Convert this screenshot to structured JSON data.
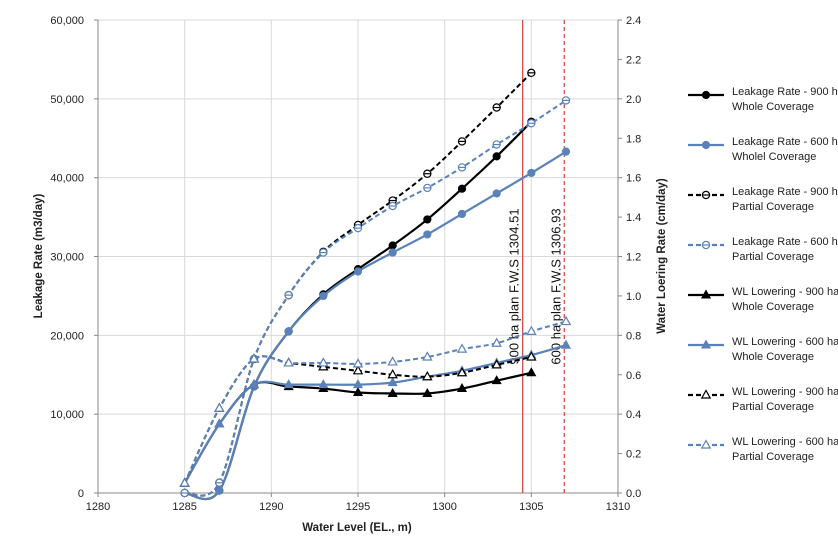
{
  "chart_data": {
    "type": "line",
    "x_axis": {
      "label": "Water Level (EL., m)",
      "min": 1280,
      "max": 1310,
      "ticks": [
        1280,
        1285,
        1290,
        1295,
        1300,
        1305,
        1310
      ]
    },
    "y_left": {
      "label": "Leakage Rate (m3/day)",
      "min": 0,
      "max": 60000,
      "ticks": [
        0,
        10000,
        20000,
        30000,
        40000,
        50000,
        60000
      ],
      "tick_labels": [
        "0",
        "10,000",
        "20,000",
        "30,000",
        "40,000",
        "50,000",
        "60,000"
      ]
    },
    "y_right": {
      "label": "Water Loering Rate (cm/day)",
      "min": 0,
      "max": 2.4,
      "ticks": [
        0,
        0.2,
        0.4,
        0.6,
        0.8,
        1.0,
        1.2,
        1.4,
        1.6,
        1.8,
        2.0,
        2.2,
        2.4
      ],
      "tick_labels": [
        "0.0",
        "0.2",
        "0.4",
        "0.6",
        "0.8",
        "1.0",
        "1.2",
        "1.4",
        "1.6",
        "1.8",
        "2.0",
        "2.2",
        "2.4"
      ]
    },
    "grid": true,
    "legend_position": "right",
    "reference_lines": [
      {
        "x": 1304.5,
        "label": "900 ha plan  F.W.S 1304.51",
        "style": "solid",
        "color": "#d94040"
      },
      {
        "x": 1306.9,
        "label": "600 ha plan  F.W.S 1306.93",
        "style": "dashed",
        "color": "#d94040"
      }
    ],
    "series": [
      {
        "name": "Leakage Rate - 900 ha, Whole Coverage",
        "axis": "left",
        "color": "#000000",
        "dash": false,
        "marker": "circle-filled",
        "x": [
          1285,
          1287,
          1289,
          1291,
          1293,
          1295,
          1297,
          1299,
          1301,
          1303,
          1305
        ],
        "y": [
          0,
          300,
          13500,
          20500,
          25200,
          28400,
          31400,
          34700,
          38600,
          42700,
          47100
        ]
      },
      {
        "name": "Leakage Rate - 600 ha, Wholel Coverage",
        "axis": "left",
        "color": "#5a82b8",
        "dash": false,
        "marker": "circle-filled",
        "x": [
          1285,
          1287,
          1289,
          1291,
          1293,
          1295,
          1297,
          1299,
          1301,
          1303,
          1305,
          1307
        ],
        "y": [
          0,
          300,
          13500,
          20500,
          25000,
          28100,
          30500,
          32800,
          35400,
          38000,
          40600,
          43300
        ]
      },
      {
        "name": "Leakage Rate - 900 ha, Partial Coverage",
        "axis": "left",
        "color": "#000000",
        "dash": true,
        "marker": "circle-half",
        "x": [
          1285,
          1287,
          1289,
          1291,
          1293,
          1295,
          1297,
          1299,
          1301,
          1303,
          1305
        ],
        "y": [
          0,
          1300,
          17000,
          25100,
          30600,
          34000,
          37100,
          40500,
          44600,
          48900,
          53300
        ]
      },
      {
        "name": "Leakage Rate - 600 ha, Partial Coverage",
        "axis": "left",
        "color": "#5a82b8",
        "dash": true,
        "marker": "circle-half",
        "x": [
          1285,
          1287,
          1289,
          1291,
          1293,
          1295,
          1297,
          1299,
          1301,
          1303,
          1305,
          1307
        ],
        "y": [
          0,
          1300,
          17000,
          25100,
          30500,
          33600,
          36400,
          38700,
          41300,
          44200,
          46900,
          49800
        ]
      },
      {
        "name": "WL Lowering - 900 ha, Whole Coverage",
        "axis": "right",
        "color": "#000000",
        "dash": false,
        "marker": "triangle-filled",
        "x": [
          1285,
          1287,
          1289,
          1291,
          1293,
          1295,
          1297,
          1299,
          1301,
          1303,
          1305
        ],
        "y": [
          0.05,
          0.35,
          0.55,
          0.54,
          0.53,
          0.51,
          0.505,
          0.505,
          0.53,
          0.57,
          0.61
        ]
      },
      {
        "name": "WL Lowering - 600 ha, Whole Coverage",
        "axis": "right",
        "color": "#5a82b8",
        "dash": false,
        "marker": "triangle-filled",
        "x": [
          1285,
          1287,
          1289,
          1291,
          1293,
          1295,
          1297,
          1299,
          1301,
          1303,
          1305,
          1307
        ],
        "y": [
          0.05,
          0.35,
          0.55,
          0.55,
          0.55,
          0.55,
          0.56,
          0.59,
          0.62,
          0.66,
          0.7,
          0.75
        ]
      },
      {
        "name": "WL Lowering - 900 ha, Partial Coverage",
        "axis": "right",
        "color": "#000000",
        "dash": true,
        "marker": "triangle-open",
        "x": [
          1285,
          1287,
          1289,
          1291,
          1293,
          1295,
          1297,
          1299,
          1301,
          1303,
          1305
        ],
        "y": [
          0.05,
          0.43,
          0.68,
          0.66,
          0.64,
          0.62,
          0.6,
          0.59,
          0.61,
          0.65,
          0.69
        ]
      },
      {
        "name": "WL Lowering - 600 ha, Partial Coverage",
        "axis": "right",
        "color": "#5a82b8",
        "dash": true,
        "marker": "triangle-open",
        "x": [
          1285,
          1287,
          1289,
          1291,
          1293,
          1295,
          1297,
          1299,
          1301,
          1303,
          1305,
          1307
        ],
        "y": [
          0.05,
          0.43,
          0.68,
          0.66,
          0.66,
          0.655,
          0.665,
          0.69,
          0.73,
          0.76,
          0.82,
          0.87
        ]
      }
    ],
    "legend": [
      [
        "Leakage Rate - 900 ha,",
        "Whole Coverage"
      ],
      [
        "Leakage Rate - 600 ha,",
        "Wholel Coverage"
      ],
      [
        "Leakage Rate - 900 ha,",
        "Partial Coverage"
      ],
      [
        "Leakage Rate - 600 ha,",
        "Partial Coverage"
      ],
      [
        "WL Lowering - 900 ha,",
        "Whole Coverage"
      ],
      [
        "WL Lowering - 600 ha,",
        "Whole Coverage"
      ],
      [
        "WL Lowering - 900 ha,",
        "Partial Coverage"
      ],
      [
        "WL Lowering - 600 ha,",
        "Partial Coverage"
      ]
    ]
  }
}
